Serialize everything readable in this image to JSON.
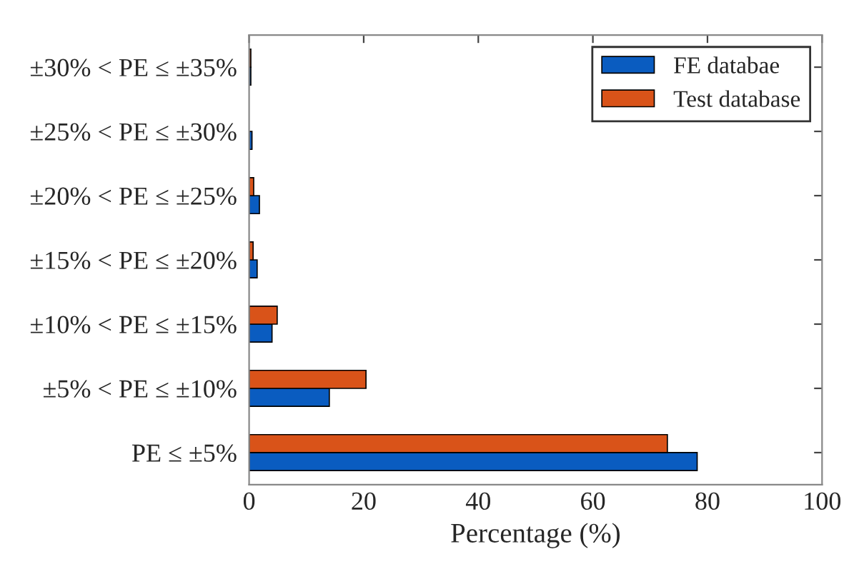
{
  "chart_data": {
    "type": "bar",
    "orientation": "horizontal",
    "xlabel": "Percentage (%)",
    "categories": [
      "±30% < PE ≤ ±35%",
      "±25% < PE ≤ ±30%",
      "±20% < PE ≤ ±25%",
      "±15% < PE ≤ ±20%",
      "±10% < PE ≤ ±15%",
      "±5% < PE ≤ ±10%",
      "PE ≤ ±5%"
    ],
    "series": [
      {
        "name": "FE databae",
        "color": "#0a5cc0",
        "values": [
          0.3,
          0.5,
          1.8,
          1.4,
          4.0,
          14.0,
          78.2
        ]
      },
      {
        "name": "Test database",
        "color": "#d95319",
        "values": [
          0.3,
          null,
          0.8,
          0.7,
          4.9,
          20.4,
          73.0
        ]
      }
    ],
    "xlim": [
      0,
      100
    ],
    "xticks": [
      0,
      20,
      40,
      60,
      80,
      100
    ],
    "grid": false,
    "legend": "top right"
  }
}
